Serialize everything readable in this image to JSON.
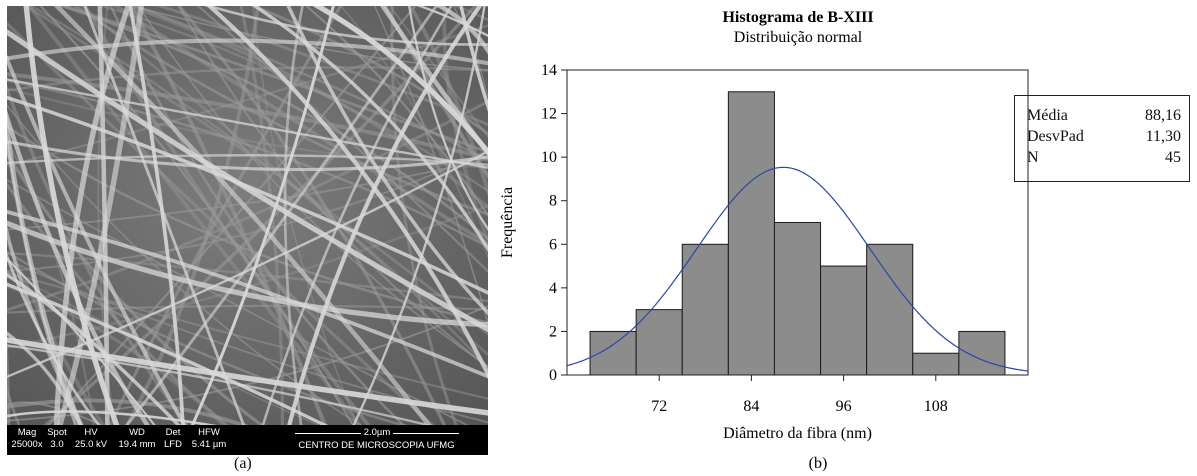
{
  "panel_a": {
    "label": "(a)",
    "databar": {
      "cells": [
        {
          "header": "Mag",
          "value": "25000x"
        },
        {
          "header": "Spot",
          "value": "3.0"
        },
        {
          "header": "HV",
          "value": "25.0 kV"
        },
        {
          "header": "WD",
          "value": "19.4 mm"
        },
        {
          "header": "Det",
          "value": "LFD"
        },
        {
          "header": "HFW",
          "value": "5.41 µm"
        }
      ],
      "scale": "2.0µm",
      "facility": "CENTRO DE MICROSCOPIA UFMG"
    }
  },
  "panel_b": {
    "label": "(b)",
    "stats": [
      {
        "label": "Média",
        "value": "88,16"
      },
      {
        "label": "DesvPad",
        "value": "11,30"
      },
      {
        "label": "N",
        "value": "45"
      }
    ]
  },
  "chart_data": {
    "type": "bar",
    "title": "Histograma de B-XIII",
    "subtitle": "Distribuição normal",
    "xlabel": "Diâmetro da fibra (nm)",
    "ylabel": "Frequência",
    "bin_width": 6,
    "bins": [
      {
        "start": 63,
        "end": 69,
        "count": 2
      },
      {
        "start": 69,
        "end": 75,
        "count": 3
      },
      {
        "start": 75,
        "end": 81,
        "count": 6
      },
      {
        "start": 81,
        "end": 87,
        "count": 13
      },
      {
        "start": 87,
        "end": 93,
        "count": 7
      },
      {
        "start": 93,
        "end": 99,
        "count": 5
      },
      {
        "start": 99,
        "end": 105,
        "count": 6
      },
      {
        "start": 105,
        "end": 111,
        "count": 1
      },
      {
        "start": 111,
        "end": 117,
        "count": 2
      }
    ],
    "normal_fit": {
      "mean": 88.16,
      "std": 11.3,
      "n": 45
    },
    "xlim": [
      60,
      120
    ],
    "ylim": [
      0,
      14
    ],
    "xticks": [
      72,
      84,
      96,
      108
    ],
    "yticks": [
      0,
      2,
      4,
      6,
      8,
      10,
      12,
      14
    ],
    "bar_color": "#8c8c8c",
    "curve_color": "#2c48a4"
  }
}
